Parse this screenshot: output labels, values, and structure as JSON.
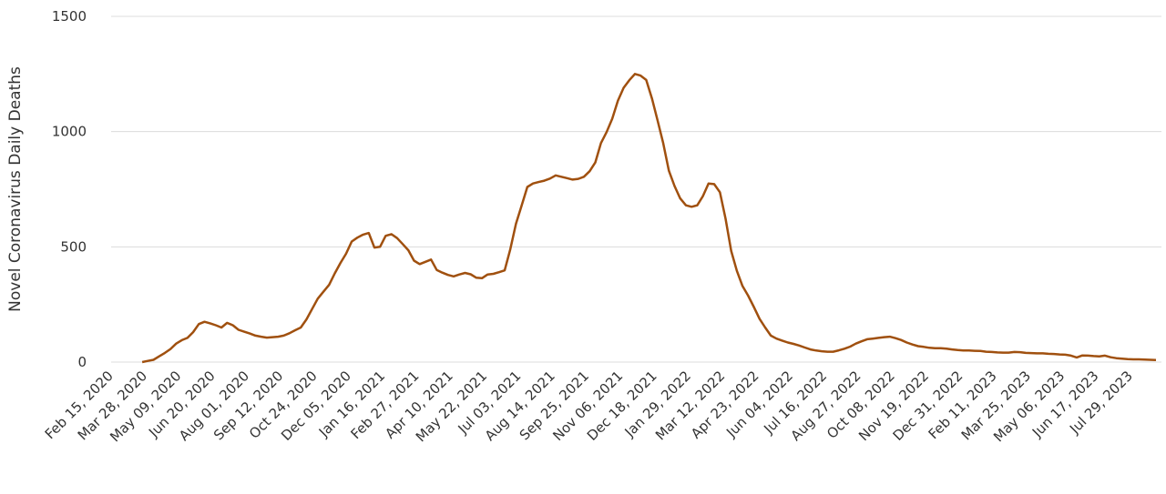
{
  "chart_data": {
    "type": "line",
    "y_label": "Novel Coronavirus Daily Deaths",
    "ylim": [
      0,
      1500
    ],
    "yticks": [
      0,
      500,
      1000,
      1500
    ],
    "grid": true,
    "color": "#a0500f",
    "categories": [
      "Feb 15, 2020",
      null,
      null,
      null,
      null,
      null,
      "Mar 28, 2020",
      null,
      null,
      null,
      null,
      null,
      "May 09, 2020",
      null,
      null,
      null,
      null,
      null,
      "Jun 20, 2020",
      null,
      null,
      null,
      null,
      null,
      "Aug 01, 2020",
      null,
      null,
      null,
      null,
      null,
      "Sep 12, 2020",
      null,
      null,
      null,
      null,
      null,
      "Oct 24, 2020",
      null,
      null,
      null,
      null,
      null,
      "Dec 05, 2020",
      null,
      null,
      null,
      null,
      null,
      "Jan 16, 2021",
      null,
      null,
      null,
      null,
      null,
      "Feb 27, 2021",
      null,
      null,
      null,
      null,
      null,
      "Apr 10, 2021",
      null,
      null,
      null,
      null,
      null,
      "May 22, 2021",
      null,
      null,
      null,
      null,
      null,
      "Jul 03, 2021",
      null,
      null,
      null,
      null,
      null,
      "Aug 14, 2021",
      null,
      null,
      null,
      null,
      null,
      "Sep 25, 2021",
      null,
      null,
      null,
      null,
      null,
      "Nov 06, 2021",
      null,
      null,
      null,
      null,
      null,
      "Dec 18, 2021",
      null,
      null,
      null,
      null,
      null,
      "Jan 29, 2022",
      null,
      null,
      null,
      null,
      null,
      "Mar 12, 2022",
      null,
      null,
      null,
      null,
      null,
      "Apr 23, 2022",
      null,
      null,
      null,
      null,
      null,
      "Jun 04, 2022",
      null,
      null,
      null,
      null,
      null,
      "Jul 16, 2022",
      null,
      null,
      null,
      null,
      null,
      "Aug 27, 2022",
      null,
      null,
      null,
      null,
      null,
      "Oct 08, 2022",
      null,
      null,
      null,
      null,
      null,
      "Nov 19, 2022",
      null,
      null,
      null,
      null,
      null,
      "Dec 31, 2022",
      null,
      null,
      null,
      null,
      null,
      "Feb 11, 2023",
      null,
      null,
      null,
      null,
      null,
      "Mar 25, 2023",
      null,
      null,
      null,
      null,
      null,
      "May 06, 2023",
      null,
      null,
      null,
      null,
      null,
      "Jun 17, 2023",
      null,
      null,
      null,
      null,
      null,
      "Jul 29, 2023",
      null,
      null,
      null,
      null
    ],
    "values": [
      null,
      null,
      null,
      null,
      null,
      0,
      5,
      10,
      25,
      40,
      57,
      80,
      95,
      105,
      130,
      165,
      175,
      168,
      160,
      150,
      170,
      160,
      140,
      132,
      124,
      115,
      110,
      106,
      108,
      110,
      115,
      125,
      138,
      150,
      185,
      230,
      275,
      305,
      335,
      385,
      430,
      470,
      523,
      540,
      553,
      560,
      497,
      500,
      548,
      555,
      538,
      512,
      485,
      440,
      425,
      435,
      445,
      400,
      388,
      378,
      372,
      380,
      387,
      381,
      366,
      364,
      380,
      383,
      390,
      398,
      490,
      600,
      680,
      760,
      775,
      781,
      787,
      796,
      810,
      804,
      798,
      792,
      795,
      804,
      828,
      866,
      950,
      998,
      1056,
      1134,
      1190,
      1223,
      1250,
      1243,
      1224,
      1144,
      1048,
      949,
      830,
      764,
      710,
      680,
      674,
      680,
      720,
      775,
      772,
      737,
      622,
      482,
      396,
      330,
      288,
      239,
      188,
      150,
      115,
      102,
      93,
      85,
      79,
      72,
      63,
      55,
      50,
      47,
      45,
      45,
      51,
      58,
      67,
      80,
      90,
      99,
      102,
      105,
      108,
      110,
      104,
      96,
      85,
      76,
      69,
      66,
      62,
      60,
      60,
      58,
      55,
      52,
      50,
      50,
      49,
      48,
      45,
      44,
      42,
      41,
      41,
      44,
      43,
      40,
      39,
      38,
      38,
      36,
      35,
      33,
      32,
      28,
      20,
      29,
      28,
      26,
      25,
      28,
      21,
      17,
      15,
      13,
      12,
      12,
      11,
      10,
      9
    ]
  }
}
